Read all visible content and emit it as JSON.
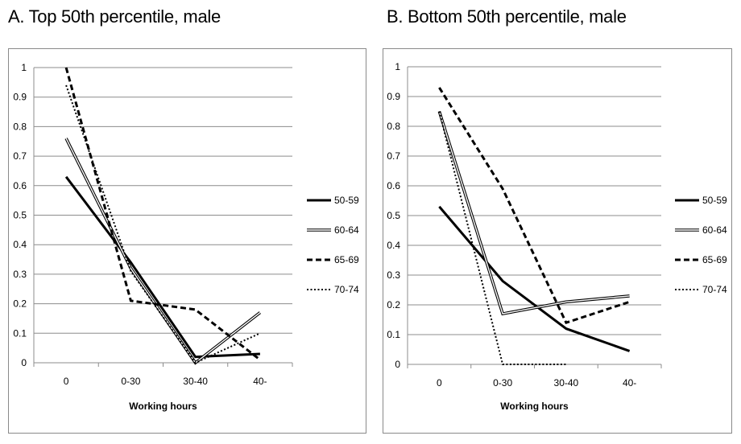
{
  "chart_data": [
    {
      "type": "line",
      "title": "A. Top 50th percentile, male",
      "xlabel": "Working hours",
      "ylabel": "",
      "categories": [
        "0",
        "0-30",
        "30-40",
        "40-"
      ],
      "ylim": [
        0,
        1
      ],
      "yticks": [
        "0",
        "0.1",
        "0.2",
        "0.3",
        "0.4",
        "0.5",
        "0.6",
        "0.7",
        "0.8",
        "0.9",
        "1"
      ],
      "grid": true,
      "legend": "right",
      "series": [
        {
          "name": "50-59",
          "style": "solid-thick",
          "values": [
            0.63,
            0.34,
            0.02,
            0.03
          ]
        },
        {
          "name": "60-64",
          "style": "double",
          "values": [
            0.76,
            0.32,
            0.0,
            0.17
          ]
        },
        {
          "name": "65-69",
          "style": "dashed",
          "values": [
            1.0,
            0.21,
            0.18,
            0.01
          ]
        },
        {
          "name": "70-74",
          "style": "dotted",
          "values": [
            0.94,
            0.31,
            0.0,
            0.1
          ]
        }
      ]
    },
    {
      "type": "line",
      "title": "B. Bottom 50th percentile, male",
      "xlabel": "Working hours",
      "ylabel": "",
      "categories": [
        "0",
        "0-30",
        "30-40",
        "40-"
      ],
      "ylim": [
        0,
        1
      ],
      "yticks": [
        "0",
        "0.1",
        "0.2",
        "0.3",
        "0.4",
        "0.5",
        "0.6",
        "0.7",
        "0.8",
        "0.9",
        "1"
      ],
      "grid": true,
      "legend": "right",
      "series": [
        {
          "name": "50-59",
          "style": "solid-thick",
          "values": [
            0.53,
            0.28,
            0.12,
            0.045
          ]
        },
        {
          "name": "60-64",
          "style": "double",
          "values": [
            0.85,
            0.17,
            0.21,
            0.23
          ]
        },
        {
          "name": "65-69",
          "style": "dashed",
          "values": [
            0.93,
            0.59,
            0.14,
            0.21
          ]
        },
        {
          "name": "70-74",
          "style": "dotted",
          "values": [
            0.85,
            0.0,
            0.0,
            null
          ]
        }
      ]
    }
  ]
}
